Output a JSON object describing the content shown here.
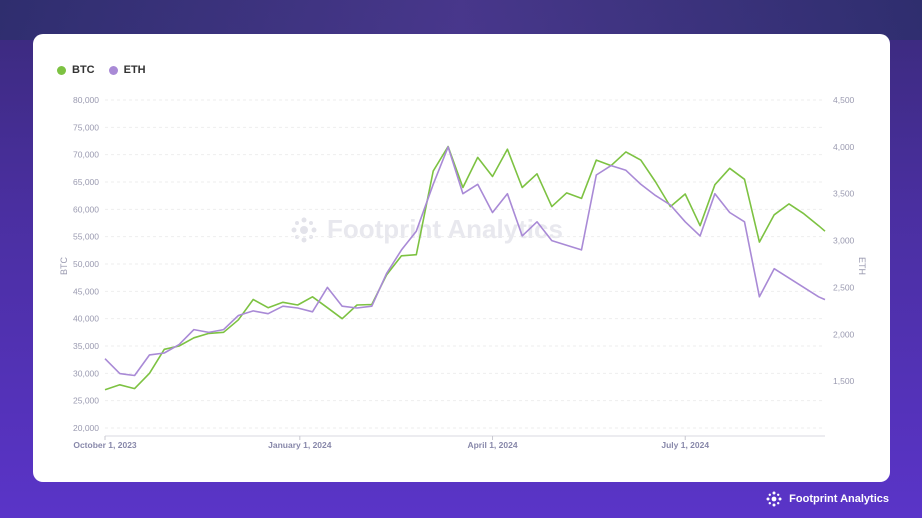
{
  "brand": {
    "name": "Footprint Analytics"
  },
  "watermark": {
    "text": "Footprint Analytics"
  },
  "legend": [
    {
      "label": "BTC",
      "color": "#7dc242"
    },
    {
      "label": "ETH",
      "color": "#a98ad6"
    }
  ],
  "chart_data": {
    "type": "line",
    "xlabel": "",
    "ylabel": "BTC",
    "y2label": "ETH",
    "x_ticks": [
      "October 1, 2023",
      "January 1, 2024",
      "April 1, 2024",
      "July 1, 2024"
    ],
    "x_range": [
      "2023-10-01",
      "2024-09-05"
    ],
    "ylim": [
      20000,
      80000
    ],
    "y_ticks": [
      "20,000",
      "25,000",
      "30,000",
      "35,000",
      "40,000",
      "45,000",
      "50,000",
      "55,000",
      "60,000",
      "65,000",
      "70,000",
      "75,000",
      "80,000"
    ],
    "y2lim": [
      1000,
      4500
    ],
    "y2_ticks": [
      "1,500",
      "2,000",
      "2,500",
      "3,000",
      "3,500",
      "4,000",
      "4,500"
    ],
    "grid": true,
    "legend_position": "top-left",
    "series": [
      {
        "name": "BTC",
        "color": "#7dc242",
        "axis": "left",
        "points": [
          [
            "2023-10-01",
            27000
          ],
          [
            "2023-10-08",
            27900
          ],
          [
            "2023-10-15",
            27200
          ],
          [
            "2023-10-22",
            30000
          ],
          [
            "2023-10-29",
            34400
          ],
          [
            "2023-11-05",
            35000
          ],
          [
            "2023-11-12",
            36500
          ],
          [
            "2023-11-19",
            37300
          ],
          [
            "2023-11-26",
            37500
          ],
          [
            "2023-12-03",
            39800
          ],
          [
            "2023-12-10",
            43500
          ],
          [
            "2023-12-17",
            42000
          ],
          [
            "2023-12-24",
            43000
          ],
          [
            "2023-12-31",
            42500
          ],
          [
            "2024-01-07",
            44000
          ],
          [
            "2024-01-14",
            42000
          ],
          [
            "2024-01-21",
            40000
          ],
          [
            "2024-01-28",
            42500
          ],
          [
            "2024-02-04",
            42600
          ],
          [
            "2024-02-11",
            48000
          ],
          [
            "2024-02-18",
            51500
          ],
          [
            "2024-02-25",
            51700
          ],
          [
            "2024-03-04",
            67000
          ],
          [
            "2024-03-11",
            71500
          ],
          [
            "2024-03-18",
            64000
          ],
          [
            "2024-03-25",
            69500
          ],
          [
            "2024-04-01",
            66000
          ],
          [
            "2024-04-08",
            71000
          ],
          [
            "2024-04-15",
            64000
          ],
          [
            "2024-04-22",
            66500
          ],
          [
            "2024-04-29",
            60500
          ],
          [
            "2024-05-06",
            63000
          ],
          [
            "2024-05-13",
            62000
          ],
          [
            "2024-05-20",
            69000
          ],
          [
            "2024-05-27",
            68000
          ],
          [
            "2024-06-03",
            70500
          ],
          [
            "2024-06-10",
            69000
          ],
          [
            "2024-06-17",
            65000
          ],
          [
            "2024-06-24",
            60500
          ],
          [
            "2024-07-01",
            62800
          ],
          [
            "2024-07-08",
            57000
          ],
          [
            "2024-07-15",
            64500
          ],
          [
            "2024-07-22",
            67500
          ],
          [
            "2024-07-29",
            65500
          ],
          [
            "2024-08-05",
            54000
          ],
          [
            "2024-08-12",
            59000
          ],
          [
            "2024-08-19",
            61000
          ],
          [
            "2024-08-26",
            59200
          ],
          [
            "2024-09-02",
            57000
          ],
          [
            "2024-09-05",
            56000
          ]
        ]
      },
      {
        "name": "ETH",
        "color": "#a98ad6",
        "axis": "right",
        "points": [
          [
            "2023-10-01",
            1740
          ],
          [
            "2023-10-08",
            1580
          ],
          [
            "2023-10-15",
            1560
          ],
          [
            "2023-10-22",
            1780
          ],
          [
            "2023-10-29",
            1800
          ],
          [
            "2023-11-05",
            1890
          ],
          [
            "2023-11-12",
            2050
          ],
          [
            "2023-11-19",
            2020
          ],
          [
            "2023-11-26",
            2050
          ],
          [
            "2023-12-03",
            2200
          ],
          [
            "2023-12-10",
            2250
          ],
          [
            "2023-12-17",
            2220
          ],
          [
            "2023-12-24",
            2300
          ],
          [
            "2023-12-31",
            2280
          ],
          [
            "2024-01-07",
            2240
          ],
          [
            "2024-01-14",
            2500
          ],
          [
            "2024-01-21",
            2300
          ],
          [
            "2024-01-28",
            2280
          ],
          [
            "2024-02-04",
            2300
          ],
          [
            "2024-02-11",
            2650
          ],
          [
            "2024-02-18",
            2900
          ],
          [
            "2024-02-25",
            3100
          ],
          [
            "2024-03-04",
            3600
          ],
          [
            "2024-03-11",
            4000
          ],
          [
            "2024-03-18",
            3500
          ],
          [
            "2024-03-25",
            3600
          ],
          [
            "2024-04-01",
            3300
          ],
          [
            "2024-04-08",
            3500
          ],
          [
            "2024-04-15",
            3050
          ],
          [
            "2024-04-22",
            3200
          ],
          [
            "2024-04-29",
            3000
          ],
          [
            "2024-05-06",
            2950
          ],
          [
            "2024-05-13",
            2900
          ],
          [
            "2024-05-20",
            3700
          ],
          [
            "2024-05-27",
            3800
          ],
          [
            "2024-06-03",
            3750
          ],
          [
            "2024-06-10",
            3600
          ],
          [
            "2024-06-17",
            3480
          ],
          [
            "2024-06-24",
            3380
          ],
          [
            "2024-07-01",
            3200
          ],
          [
            "2024-07-08",
            3050
          ],
          [
            "2024-07-15",
            3500
          ],
          [
            "2024-07-22",
            3300
          ],
          [
            "2024-07-29",
            3200
          ],
          [
            "2024-08-05",
            2400
          ],
          [
            "2024-08-12",
            2700
          ],
          [
            "2024-08-19",
            2600
          ],
          [
            "2024-08-26",
            2500
          ],
          [
            "2024-09-02",
            2400
          ],
          [
            "2024-09-05",
            2370
          ]
        ]
      }
    ]
  }
}
